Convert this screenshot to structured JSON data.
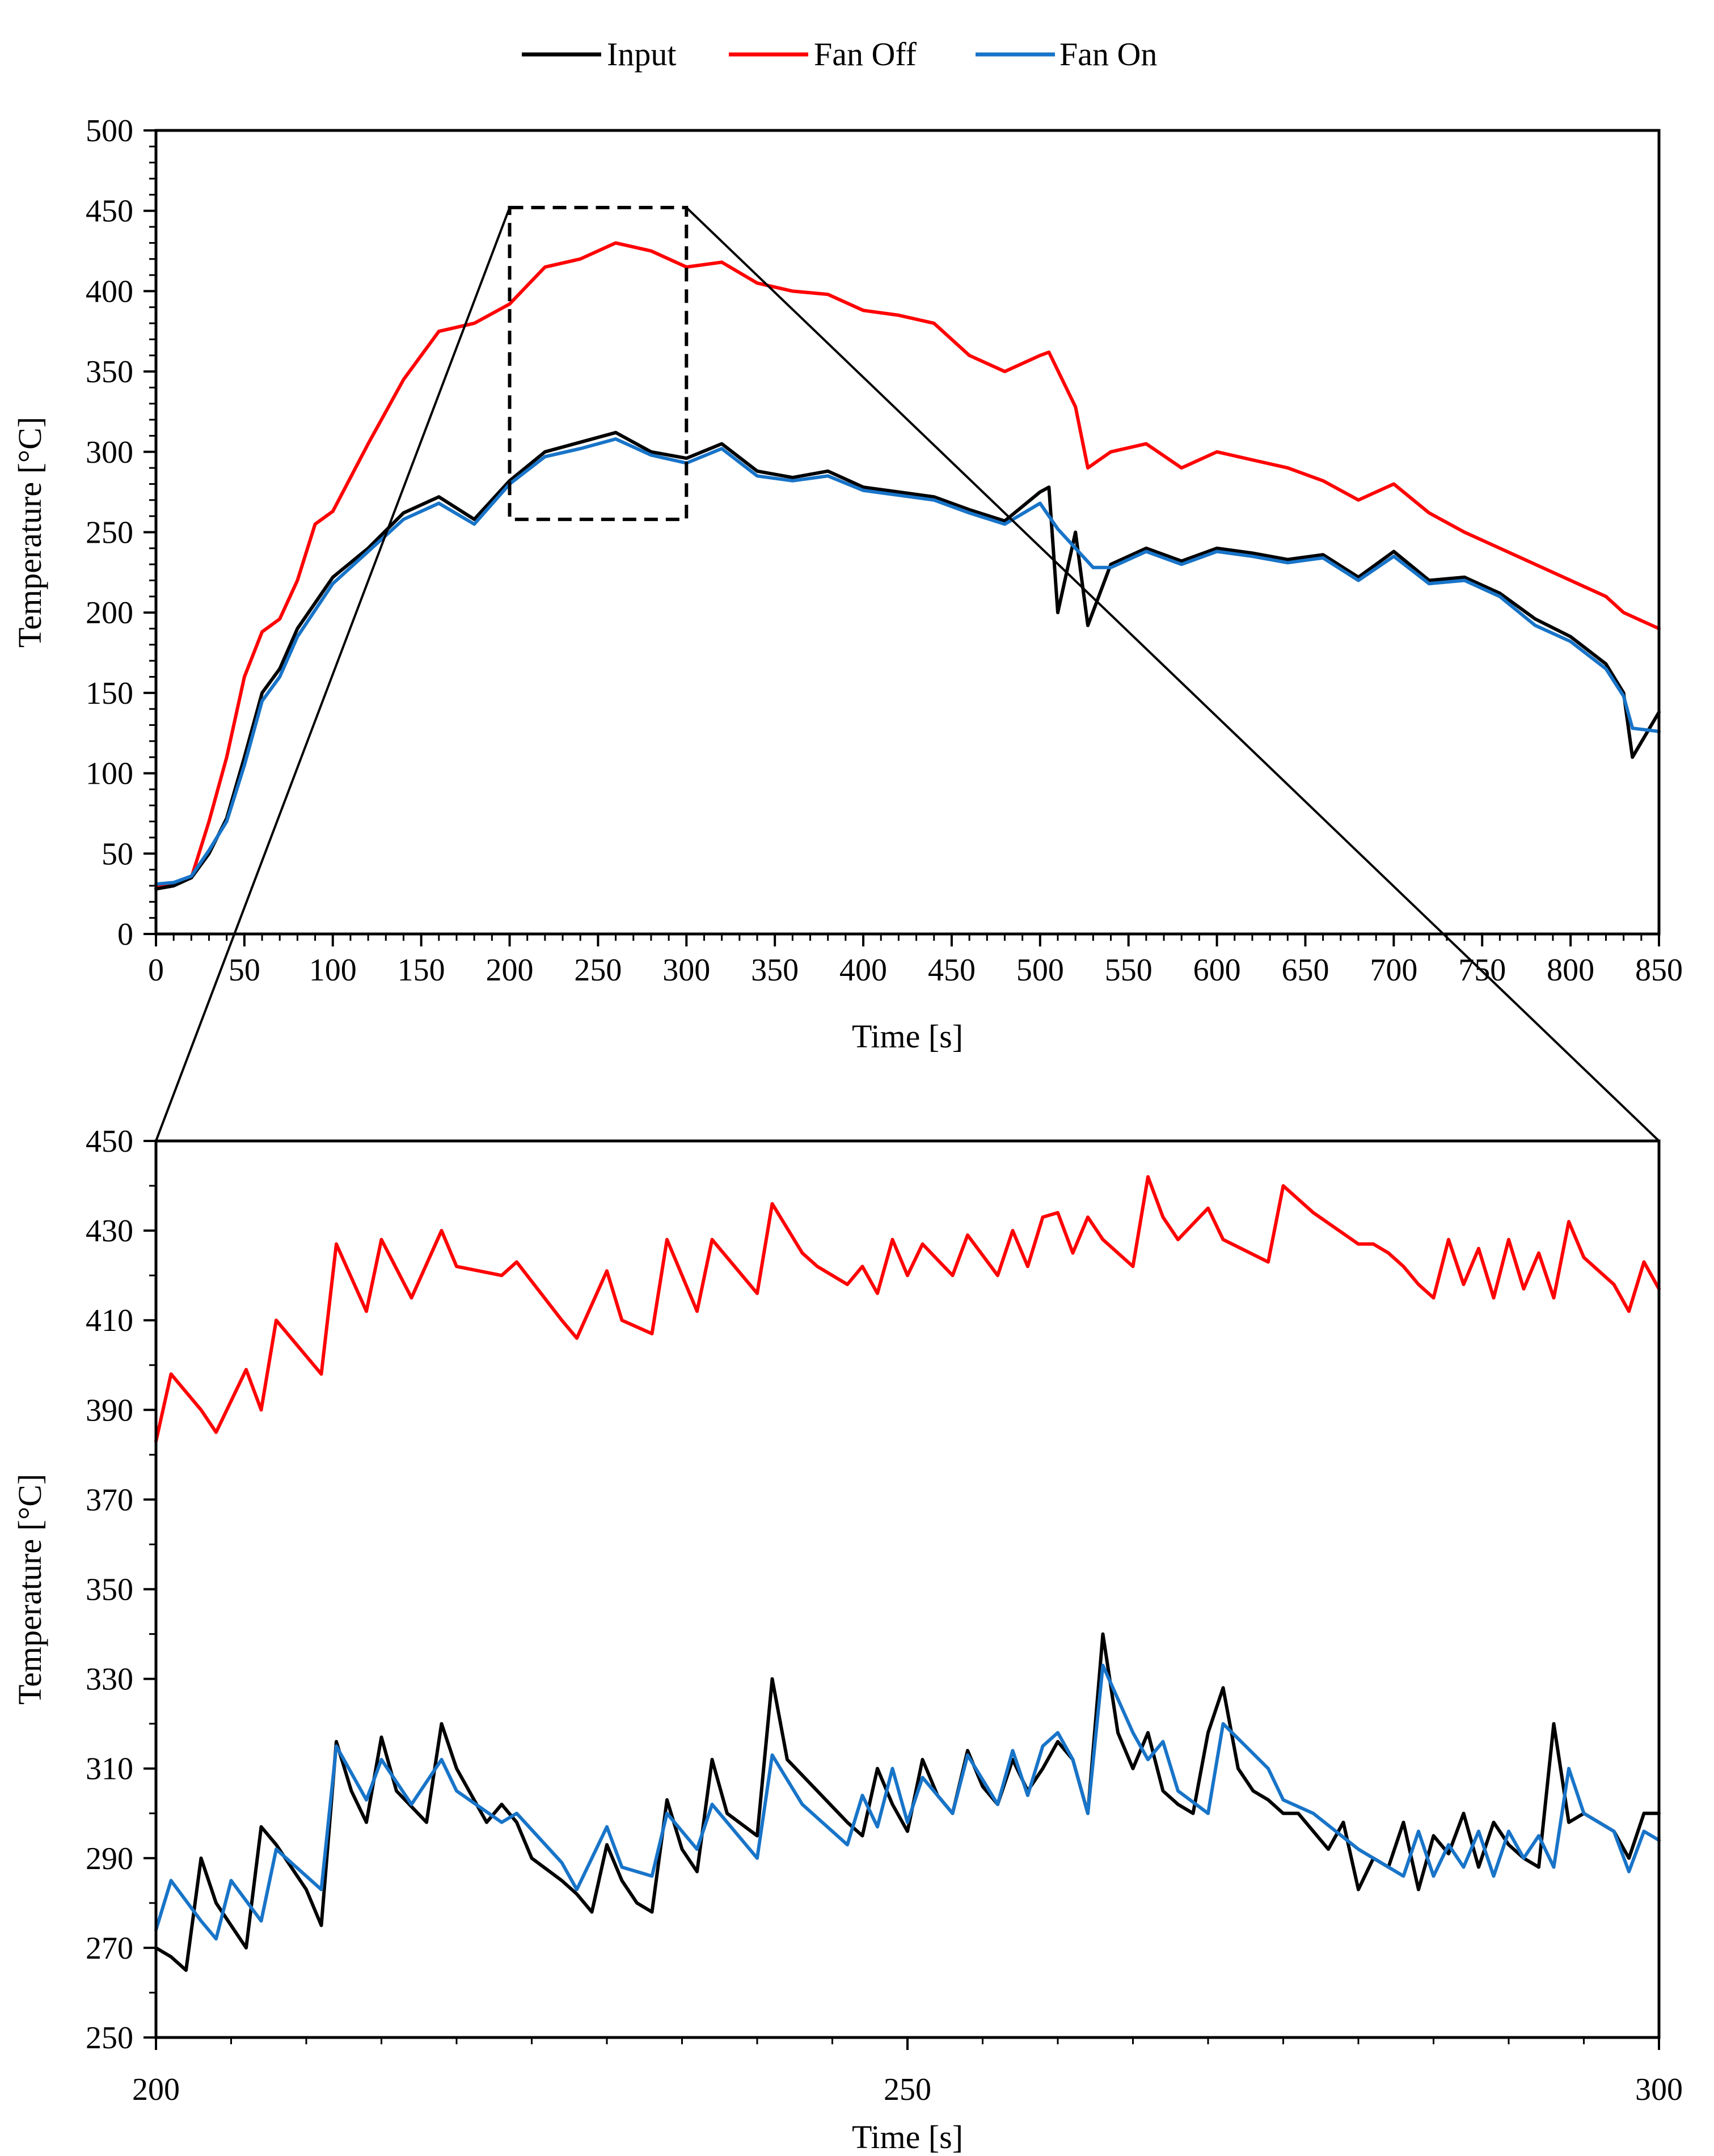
{
  "chart_data": [
    {
      "type": "line",
      "panel": "top",
      "title": "",
      "xlabel": "Time [s]",
      "ylabel": "Temperature [°C]",
      "xlim": [
        0,
        850
      ],
      "ylim": [
        0,
        500
      ],
      "xticks": [
        0,
        50,
        100,
        150,
        200,
        250,
        300,
        350,
        400,
        450,
        500,
        550,
        600,
        650,
        700,
        750,
        800,
        850
      ],
      "yticks": [
        0,
        50,
        100,
        150,
        200,
        250,
        300,
        350,
        400,
        450,
        500
      ],
      "zoom_box": {
        "x": [
          200,
          300
        ],
        "y": [
          258,
          452
        ]
      },
      "series": [
        {
          "name": "Input",
          "color": "#000000",
          "x": [
            0,
            10,
            20,
            30,
            40,
            50,
            60,
            70,
            80,
            100,
            120,
            140,
            160,
            180,
            200,
            220,
            240,
            260,
            280,
            300,
            320,
            340,
            360,
            380,
            400,
            420,
            440,
            460,
            480,
            500,
            505,
            510,
            520,
            527,
            540,
            560,
            580,
            600,
            620,
            640,
            660,
            680,
            700,
            720,
            740,
            760,
            780,
            800,
            820,
            830,
            835,
            850
          ],
          "y": [
            28,
            30,
            35,
            50,
            72,
            110,
            150,
            165,
            190,
            222,
            240,
            262,
            272,
            258,
            282,
            300,
            306,
            312,
            300,
            296,
            305,
            288,
            284,
            288,
            278,
            275,
            272,
            264,
            257,
            275,
            278,
            200,
            250,
            192,
            230,
            240,
            232,
            240,
            237,
            233,
            236,
            222,
            238,
            220,
            222,
            212,
            196,
            185,
            168,
            150,
            110,
            138
          ]
        },
        {
          "name": "Fan Off",
          "color": "#ff0000",
          "x": [
            0,
            10,
            20,
            30,
            40,
            50,
            60,
            70,
            80,
            90,
            100,
            120,
            140,
            160,
            180,
            200,
            220,
            240,
            260,
            280,
            300,
            320,
            340,
            360,
            380,
            400,
            420,
            440,
            460,
            480,
            500,
            505,
            520,
            527,
            540,
            560,
            580,
            600,
            620,
            640,
            660,
            680,
            700,
            720,
            740,
            760,
            780,
            800,
            820,
            830,
            840,
            850
          ],
          "y": [
            30,
            31,
            35,
            70,
            110,
            160,
            188,
            196,
            220,
            255,
            263,
            305,
            345,
            375,
            380,
            392,
            415,
            420,
            430,
            425,
            415,
            418,
            405,
            400,
            398,
            388,
            385,
            380,
            360,
            350,
            360,
            362,
            328,
            290,
            300,
            305,
            290,
            300,
            295,
            290,
            282,
            270,
            280,
            262,
            250,
            240,
            230,
            220,
            210,
            200,
            195,
            190
          ]
        },
        {
          "name": "Fan On",
          "color": "#1874c8",
          "x": [
            0,
            10,
            20,
            30,
            40,
            50,
            60,
            70,
            80,
            100,
            120,
            140,
            160,
            180,
            200,
            220,
            240,
            260,
            280,
            300,
            320,
            340,
            360,
            380,
            400,
            420,
            440,
            460,
            480,
            500,
            510,
            520,
            530,
            540,
            560,
            580,
            600,
            620,
            640,
            660,
            680,
            700,
            720,
            740,
            760,
            780,
            800,
            820,
            830,
            835,
            850
          ],
          "y": [
            31,
            32,
            36,
            52,
            70,
            105,
            145,
            160,
            185,
            218,
            238,
            258,
            268,
            255,
            280,
            297,
            302,
            308,
            298,
            293,
            302,
            285,
            282,
            285,
            276,
            273,
            270,
            262,
            255,
            268,
            252,
            240,
            228,
            228,
            238,
            230,
            238,
            235,
            231,
            234,
            220,
            235,
            218,
            220,
            210,
            192,
            182,
            165,
            148,
            128,
            126
          ]
        }
      ]
    },
    {
      "type": "line",
      "panel": "bottom",
      "title": "",
      "xlabel": "Time [s]",
      "ylabel": "Temperature [°C]",
      "xlim": [
        200,
        300
      ],
      "ylim": [
        250,
        450
      ],
      "xticks": [
        200,
        250,
        300
      ],
      "yticks": [
        250,
        270,
        290,
        310,
        330,
        350,
        370,
        390,
        410,
        430,
        450
      ],
      "series": [
        {
          "name": "Input",
          "color": "#000000",
          "x": [
            200,
            201,
            202,
            203,
            204,
            205,
            206,
            207,
            208,
            210,
            211,
            212,
            213,
            214,
            215,
            216,
            218,
            219,
            220,
            221,
            222,
            223,
            224,
            225,
            227,
            228,
            229,
            230,
            231,
            232,
            233,
            234,
            235,
            236,
            237,
            238,
            240,
            241,
            242,
            244,
            246,
            247,
            248,
            249,
            250,
            251,
            252,
            253,
            254,
            255,
            256,
            257,
            258,
            259,
            260,
            261,
            262,
            263,
            264,
            265,
            266,
            267,
            268,
            269,
            270,
            271,
            272,
            273,
            274,
            275,
            276,
            277,
            278,
            279,
            280,
            281,
            282,
            283,
            284,
            285,
            286,
            287,
            288,
            289,
            290,
            291,
            292,
            293,
            294,
            295,
            296,
            297,
            298,
            299,
            300
          ],
          "y": [
            270,
            268,
            265,
            290,
            280,
            275,
            270,
            297,
            293,
            283,
            275,
            316,
            305,
            298,
            317,
            305,
            298,
            320,
            310,
            304,
            298,
            302,
            298,
            290,
            285,
            282,
            278,
            293,
            285,
            280,
            278,
            303,
            292,
            287,
            312,
            300,
            295,
            330,
            312,
            305,
            298,
            295,
            310,
            302,
            296,
            312,
            304,
            300,
            314,
            306,
            302,
            312,
            305,
            310,
            316,
            312,
            300,
            340,
            318,
            310,
            318,
            305,
            302,
            300,
            318,
            328,
            310,
            305,
            303,
            300,
            300,
            296,
            292,
            298,
            283,
            290,
            288,
            298,
            283,
            295,
            291,
            300,
            288,
            298,
            293,
            290,
            288,
            320,
            298,
            300,
            298,
            296,
            290,
            300,
            300
          ]
        },
        {
          "name": "Fan Off",
          "color": "#ff0000",
          "x": [
            200,
            201,
            203,
            204,
            206,
            207,
            208,
            211,
            212,
            214,
            215,
            217,
            219,
            220,
            223,
            224,
            227,
            228,
            230,
            231,
            233,
            234,
            236,
            237,
            240,
            241,
            243,
            244,
            246,
            247,
            248,
            249,
            250,
            251,
            253,
            254,
            256,
            257,
            258,
            259,
            260,
            261,
            262,
            263,
            265,
            266,
            267,
            268,
            270,
            271,
            274,
            275,
            277,
            280,
            281,
            282,
            283,
            284,
            285,
            286,
            287,
            288,
            289,
            290,
            291,
            292,
            293,
            294,
            295,
            297,
            298,
            299,
            300
          ],
          "y": [
            383,
            398,
            390,
            385,
            399,
            390,
            410,
            398,
            427,
            412,
            428,
            415,
            430,
            422,
            420,
            423,
            410,
            406,
            421,
            410,
            407,
            428,
            412,
            428,
            416,
            436,
            425,
            422,
            418,
            422,
            416,
            428,
            420,
            427,
            420,
            429,
            420,
            430,
            422,
            433,
            434,
            425,
            433,
            428,
            422,
            442,
            433,
            428,
            435,
            428,
            423,
            440,
            434,
            427,
            427,
            425,
            422,
            418,
            415,
            428,
            418,
            426,
            415,
            428,
            417,
            425,
            415,
            432,
            424,
            418,
            412,
            423,
            417
          ]
        },
        {
          "name": "Fan On",
          "color": "#1874c8",
          "x": [
            200,
            201,
            203,
            204,
            205,
            207,
            208,
            211,
            212,
            214,
            215,
            217,
            219,
            220,
            223,
            224,
            227,
            228,
            230,
            231,
            233,
            234,
            236,
            237,
            240,
            241,
            243,
            244,
            246,
            247,
            248,
            249,
            250,
            251,
            253,
            254,
            256,
            257,
            258,
            259,
            260,
            261,
            262,
            263,
            265,
            266,
            267,
            268,
            270,
            271,
            274,
            275,
            277,
            280,
            281,
            282,
            283,
            284,
            285,
            286,
            287,
            288,
            289,
            290,
            291,
            292,
            293,
            294,
            295,
            297,
            298,
            299,
            300
          ],
          "y": [
            274,
            285,
            276,
            272,
            285,
            276,
            292,
            283,
            315,
            303,
            312,
            302,
            312,
            305,
            298,
            300,
            289,
            283,
            297,
            288,
            286,
            300,
            292,
            302,
            290,
            313,
            302,
            299,
            293,
            304,
            297,
            310,
            298,
            308,
            300,
            313,
            302,
            314,
            304,
            315,
            318,
            312,
            300,
            333,
            318,
            312,
            316,
            305,
            300,
            320,
            310,
            303,
            300,
            292,
            290,
            288,
            286,
            296,
            286,
            293,
            288,
            296,
            286,
            296,
            290,
            295,
            288,
            310,
            300,
            296,
            287,
            296,
            294
          ]
        }
      ]
    }
  ]
}
